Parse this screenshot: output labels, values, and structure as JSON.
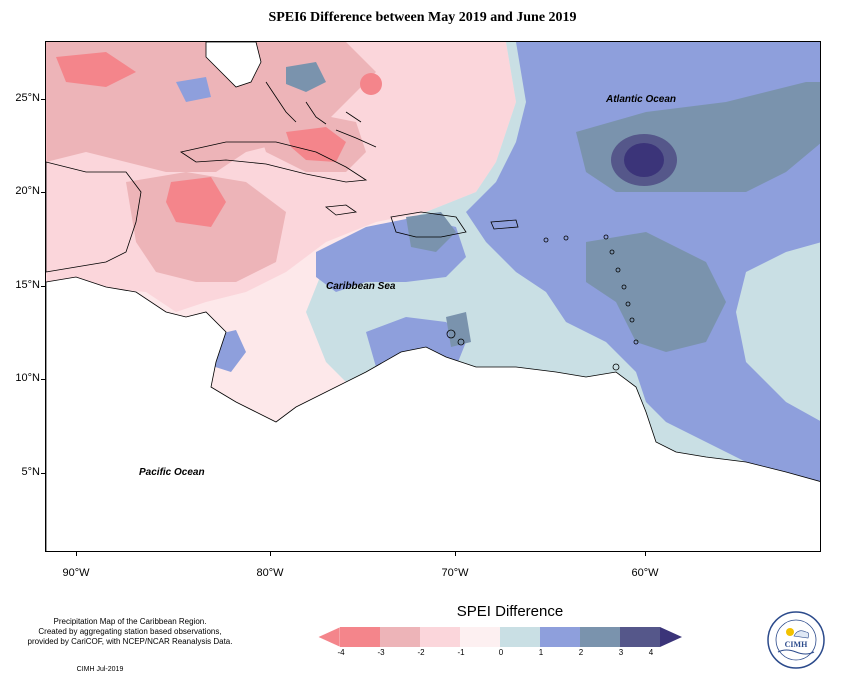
{
  "map": {
    "title": "SPEI6 Difference between May 2019 and June 2019",
    "lat_labels": [
      "25°N",
      "20°N",
      "15°N",
      "10°N",
      "5°N"
    ],
    "lon_labels": [
      "90°W",
      "80°W",
      "70°W",
      "60°W"
    ],
    "ocean_labels": {
      "atlantic": "Atlantic Ocean",
      "caribbean": "Caribbean Sea",
      "pacific": "Pacific Ocean"
    }
  },
  "footer": {
    "line1": "Precipitation Map of the Caribbean Region.",
    "line2": "Created by aggregating station based observations,",
    "line3": "provided by CariCOF, with NCEP/NCAR Reanalysis Data.",
    "credit": "CIMH Jul-2019"
  },
  "legend": {
    "title": "SPEI Difference",
    "ticks": [
      "-4",
      "-3",
      "-2",
      "-1",
      "0",
      "1",
      "2",
      "3",
      "4"
    ],
    "colors": [
      "#f4858b",
      "#edb4b8",
      "#fbd6db",
      "#fdf0f1",
      "#c9dfe4",
      "#8e9fdc",
      "#7a93ad",
      "#55578a",
      "#3b3479"
    ]
  },
  "logo": {
    "name": "CIMH"
  }
}
